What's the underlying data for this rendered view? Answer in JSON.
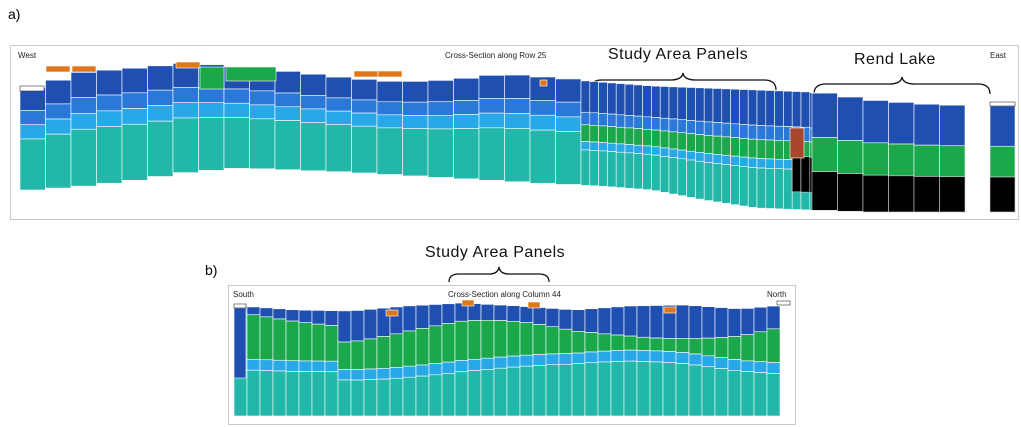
{
  "colors": {
    "dark_blue": "#1f4fb0",
    "medium_blue": "#2a78d8",
    "light_blue": "#29a8e8",
    "green": "#1aa84a",
    "teal": "#22b7a9",
    "orange": "#e0761b",
    "red_brown": "#a8472c",
    "black": "#000000",
    "cell_border": "#ffffff"
  },
  "figure_a": {
    "panel_label": "a)",
    "west_label": "West",
    "east_label": "East",
    "section_title": "Cross-Section along Row  25",
    "annotation_study": "Study Area Panels",
    "annotation_lake": "Rend Lake"
  },
  "figure_b": {
    "panel_label": "b)",
    "south_label": "South",
    "north_label": "North",
    "section_title": "Cross-Section along Column  44",
    "annotation_study": "Study Area Panels"
  }
}
